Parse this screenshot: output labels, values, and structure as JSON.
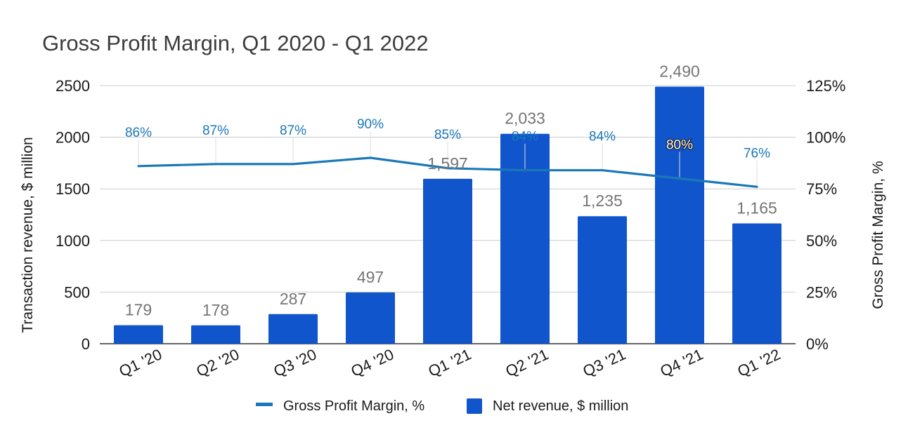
{
  "chart_data": {
    "type": "bar",
    "title": "Gross Profit Margin, Q1 2020 - Q1 2022",
    "categories": [
      "Q1 '20",
      "Q2 '20",
      "Q3 '20",
      "Q4 '20",
      "Q1 '21",
      "Q2 '21",
      "Q3 '21",
      "Q4 '21",
      "Q1 '22"
    ],
    "series": [
      {
        "name": "Net revenue, $ million",
        "kind": "bar",
        "axis": "left",
        "color": "#1155cc",
        "values": [
          179,
          178,
          287,
          497,
          1597,
          2033,
          1235,
          2490,
          1165
        ],
        "labels": [
          "179",
          "178",
          "287",
          "497",
          "1,597",
          "2,033",
          "1,235",
          "2,490",
          "1,165"
        ]
      },
      {
        "name": "Gross Profit Margin, %",
        "kind": "line",
        "axis": "right",
        "color": "#1a78b8",
        "values": [
          86,
          87,
          87,
          90,
          85,
          84,
          84,
          80,
          76
        ],
        "labels": [
          "86%",
          "87%",
          "87%",
          "90%",
          "85%",
          "84%",
          "84%",
          "80%",
          "76%"
        ]
      }
    ],
    "ylabel": "Transaction revenue, $ million",
    "ylabel_right": "Gross Profit Margin, %",
    "ylim": [
      0,
      2500
    ],
    "ylim_right": [
      0,
      125
    ],
    "yticks": [
      0,
      500,
      1000,
      1500,
      2000,
      2500
    ],
    "yticks_right": [
      "0%",
      "25%",
      "50%",
      "75%",
      "100%",
      "125%"
    ],
    "grid": true,
    "legend": "bottom"
  }
}
